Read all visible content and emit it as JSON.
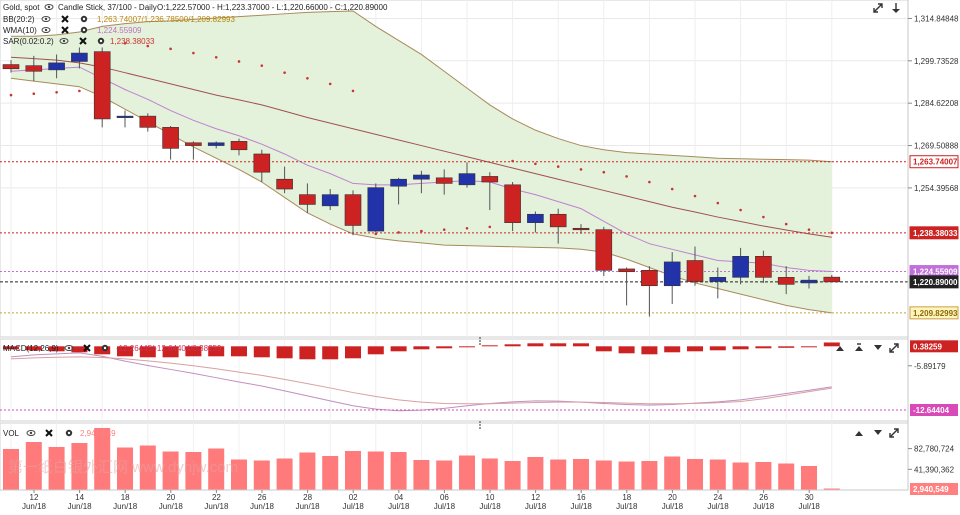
{
  "title": "Gold, spot",
  "chart_type": "Candle Stick, 37/100 - Daily",
  "ohlc": "O:1,222.57000 - H:1,223.37000 - L:1,220.66000 - C:1,220.89000",
  "indicators": [
    {
      "name": "BB(20:2)",
      "values": "1,263.74007/1,236.78500/1,209.82993",
      "color": "#b8860b"
    },
    {
      "name": "WMA(10)",
      "values": "1,224.55909",
      "color": "#c070c0"
    },
    {
      "name": "SAR(0.02:0.2)",
      "values": "1,238.38033",
      "color": "#cc3333"
    }
  ],
  "price_axis": {
    "ticks": [
      "1,314.84848",
      "1,299.73528",
      "1,284.62208",
      "1,269.50888",
      "1,254.39568"
    ],
    "tags": [
      {
        "label": "1,263.74007",
        "value": 1263.74007,
        "color": "#ffffff",
        "fg": "#cc2222"
      },
      {
        "label": "1,238.38033",
        "value": 1238.38033,
        "color": "#cc2222",
        "fg": "#ffffff"
      },
      {
        "label": "1,224.55909",
        "value": 1224.55909,
        "color": "#c070d8",
        "fg": "#ffffff"
      },
      {
        "label": "1,220.89000",
        "value": 1220.89,
        "color": "#222222",
        "fg": "#ffffff"
      },
      {
        "label": "1,209.82993",
        "value": 1209.82993,
        "color": "#fff3c0",
        "fg": "#8a6d00"
      }
    ]
  },
  "macd": {
    "label": "MACD(12,26,9)",
    "values": "-12.26445/-12.64404/0.38259",
    "ticks": [
      "-5.89179"
    ],
    "tags": [
      {
        "label": "0.38259",
        "color": "#cc2222",
        "fg": "#ffffff"
      },
      {
        "label": "-12.64404",
        "color": "#d84ab8",
        "fg": "#ffffff"
      }
    ]
  },
  "volume": {
    "label": "VOL",
    "value": "2,940,549",
    "ticks": [
      "82,780,724",
      "41,390,362"
    ],
    "tag": {
      "label": "2,940,549",
      "color": "#ff8080",
      "fg": "#ffffff"
    }
  },
  "x_axis": [
    {
      "day": "12",
      "month": "Jun/18"
    },
    {
      "day": "14",
      "month": "Jun/18"
    },
    {
      "day": "18",
      "month": "Jun/18"
    },
    {
      "day": "20",
      "month": "Jun/18"
    },
    {
      "day": "22",
      "month": "Jun/18"
    },
    {
      "day": "26",
      "month": "Jun/18"
    },
    {
      "day": "28",
      "month": "Jun/18"
    },
    {
      "day": "02",
      "month": "Jul/18"
    },
    {
      "day": "04",
      "month": "Jul/18"
    },
    {
      "day": "06",
      "month": "Jul/18"
    },
    {
      "day": "10",
      "month": "Jul/18"
    },
    {
      "day": "12",
      "month": "Jul/18"
    },
    {
      "day": "16",
      "month": "Jul/18"
    },
    {
      "day": "18",
      "month": "Jul/18"
    },
    {
      "day": "20",
      "month": "Jul/18"
    },
    {
      "day": "24",
      "month": "Jul/18"
    },
    {
      "day": "26",
      "month": "Jul/18"
    },
    {
      "day": "30",
      "month": "Jul/18"
    }
  ],
  "watermark": "第一纸白银外汇网  www.dyhjw.com",
  "colors": {
    "up": "#2233aa",
    "down": "#cc2222",
    "band_fill": "#e4f2dc",
    "band_line": "#a88a5a",
    "mid_line": "#a05050",
    "wma": "#c080d0",
    "sar": "#cc3333",
    "vol": "#ff7b7b"
  },
  "chart_data": [
    {
      "type": "candlestick",
      "title": "Gold, spot",
      "ylim": [
        1203,
        1320
      ],
      "candles": [
        {
          "o": 1298.4,
          "h": 1300.0,
          "l": 1295.5,
          "c": 1296.9
        },
        {
          "o": 1298.0,
          "h": 1301.5,
          "l": 1292.5,
          "c": 1296.0
        },
        {
          "o": 1296.5,
          "h": 1302.0,
          "l": 1293.5,
          "c": 1299.0
        },
        {
          "o": 1299.5,
          "h": 1304.5,
          "l": 1297.0,
          "c": 1302.5
        },
        {
          "o": 1303.0,
          "h": 1304.5,
          "l": 1276.0,
          "c": 1279.0
        },
        {
          "o": 1279.5,
          "h": 1282.0,
          "l": 1276.0,
          "c": 1280.0
        },
        {
          "o": 1280.0,
          "h": 1281.0,
          "l": 1274.5,
          "c": 1276.0
        },
        {
          "o": 1276.0,
          "h": 1276.5,
          "l": 1264.5,
          "c": 1268.5
        },
        {
          "o": 1270.5,
          "h": 1271.0,
          "l": 1264.5,
          "c": 1269.5
        },
        {
          "o": 1269.5,
          "h": 1271.0,
          "l": 1268.5,
          "c": 1270.5
        },
        {
          "o": 1271.0,
          "h": 1272.0,
          "l": 1266.0,
          "c": 1268.0
        },
        {
          "o": 1266.5,
          "h": 1268.0,
          "l": 1256.5,
          "c": 1260.0
        },
        {
          "o": 1257.5,
          "h": 1262.0,
          "l": 1252.5,
          "c": 1254.0
        },
        {
          "o": 1252.0,
          "h": 1256.0,
          "l": 1245.5,
          "c": 1248.5
        },
        {
          "o": 1248.0,
          "h": 1254.0,
          "l": 1246.5,
          "c": 1252.0
        },
        {
          "o": 1252.0,
          "h": 1253.5,
          "l": 1237.5,
          "c": 1241.0
        },
        {
          "o": 1239.0,
          "h": 1256.0,
          "l": 1238.5,
          "c": 1254.5
        },
        {
          "o": 1255.0,
          "h": 1258.0,
          "l": 1248.5,
          "c": 1257.5
        },
        {
          "o": 1257.5,
          "h": 1260.5,
          "l": 1252.5,
          "c": 1259.0
        },
        {
          "o": 1258.0,
          "h": 1261.0,
          "l": 1252.0,
          "c": 1256.0
        },
        {
          "o": 1255.5,
          "h": 1263.5,
          "l": 1254.5,
          "c": 1259.5
        },
        {
          "o": 1258.5,
          "h": 1260.0,
          "l": 1246.5,
          "c": 1256.5
        },
        {
          "o": 1255.5,
          "h": 1256.5,
          "l": 1239.0,
          "c": 1242.0
        },
        {
          "o": 1242.0,
          "h": 1246.0,
          "l": 1238.5,
          "c": 1245.0
        },
        {
          "o": 1245.0,
          "h": 1247.0,
          "l": 1234.5,
          "c": 1240.5
        },
        {
          "o": 1240.0,
          "h": 1241.5,
          "l": 1238.0,
          "c": 1239.5
        },
        {
          "o": 1239.5,
          "h": 1240.5,
          "l": 1223.0,
          "c": 1225.0
        },
        {
          "o": 1225.5,
          "h": 1226.0,
          "l": 1212.5,
          "c": 1224.5
        },
        {
          "o": 1225.0,
          "h": 1226.5,
          "l": 1208.5,
          "c": 1219.5
        },
        {
          "o": 1219.5,
          "h": 1231.5,
          "l": 1213.0,
          "c": 1228.0
        },
        {
          "o": 1228.5,
          "h": 1233.5,
          "l": 1219.5,
          "c": 1221.0
        },
        {
          "o": 1221.0,
          "h": 1226.0,
          "l": 1215.0,
          "c": 1222.5
        },
        {
          "o": 1222.5,
          "h": 1233.0,
          "l": 1220.0,
          "c": 1230.0
        },
        {
          "o": 1230.0,
          "h": 1232.0,
          "l": 1220.5,
          "c": 1222.5
        },
        {
          "o": 1222.5,
          "h": 1226.5,
          "l": 1216.5,
          "c": 1220.0
        },
        {
          "o": 1220.5,
          "h": 1223.0,
          "l": 1218.5,
          "c": 1221.5
        },
        {
          "o": 1222.57,
          "h": 1223.37,
          "l": 1220.66,
          "c": 1220.89
        }
      ],
      "bb_upper": [
        1308.5,
        1308.5,
        1309.0,
        1310.0,
        1312.0,
        1313.0,
        1313.7,
        1314.0,
        1314.5,
        1315.0,
        1315.5,
        1316.0,
        1316.5,
        1317.0,
        1317.3,
        1317.5,
        1312.0,
        1307.0,
        1302.0,
        1296.0,
        1290.0,
        1284.0,
        1279.0,
        1275.0,
        1272.0,
        1269.5,
        1268.0,
        1267.0,
        1266.5,
        1266.0,
        1265.5,
        1265.0,
        1264.8,
        1264.6,
        1264.5,
        1264.3,
        1263.74
      ],
      "bb_mid": [
        1301.0,
        1300.5,
        1300.0,
        1299.0,
        1297.5,
        1295.5,
        1293.5,
        1291.5,
        1289.5,
        1287.5,
        1285.8,
        1284.0,
        1281.8,
        1279.5,
        1277.5,
        1275.5,
        1273.5,
        1271.5,
        1269.5,
        1267.5,
        1265.5,
        1263.5,
        1261.5,
        1259.5,
        1257.5,
        1255.5,
        1253.5,
        1251.5,
        1249.5,
        1247.5,
        1245.8,
        1244.0,
        1242.4,
        1240.8,
        1239.4,
        1238.0,
        1236.785
      ],
      "bb_lower": [
        1293.5,
        1292.5,
        1291.5,
        1290.5,
        1287.0,
        1282.5,
        1278.0,
        1273.5,
        1269.0,
        1265.0,
        1261.0,
        1256.5,
        1251.0,
        1245.5,
        1241.5,
        1238.0,
        1236.5,
        1235.5,
        1234.8,
        1234.0,
        1233.8,
        1233.6,
        1233.4,
        1233.2,
        1233.0,
        1232.5,
        1231.5,
        1229.0,
        1226.0,
        1223.0,
        1220.5,
        1218.5,
        1216.5,
        1214.5,
        1212.5,
        1211.0,
        1209.83
      ],
      "wma": [
        1296.0,
        1296.5,
        1297.0,
        1297.5,
        1293.5,
        1289.5,
        1286.0,
        1282.0,
        1278.5,
        1275.5,
        1273.0,
        1270.0,
        1266.5,
        1262.5,
        1259.5,
        1256.0,
        1255.5,
        1255.5,
        1256.0,
        1256.5,
        1257.0,
        1256.5,
        1254.0,
        1252.0,
        1249.5,
        1247.0,
        1242.5,
        1238.0,
        1234.5,
        1232.5,
        1230.5,
        1228.5,
        1228.0,
        1227.5,
        1226.0,
        1225.0,
        1224.56
      ],
      "sar": [
        1287.5,
        1288.0,
        1288.5,
        1289.0,
        1307.0,
        1306.0,
        1305.0,
        1304.0,
        1302.5,
        1301.0,
        1299.5,
        1298.0,
        1295.5,
        1293.5,
        1291.5,
        1289.0,
        1238.0,
        1238.5,
        1239.0,
        1239.5,
        1240.0,
        1240.5,
        1264.0,
        1263.0,
        1262.0,
        1261.0,
        1260.0,
        1258.5,
        1256.5,
        1254.0,
        1251.5,
        1249.0,
        1246.5,
        1244.0,
        1241.5,
        1239.5,
        1238.38
      ]
    },
    {
      "type": "bar",
      "title": "MACD(12,26,9)",
      "ylim": [
        -22,
        1
      ],
      "histogram": [
        -0.3,
        -0.4,
        -0.5,
        -0.6,
        -0.8,
        -1.0,
        -1.1,
        -1.1,
        -1.0,
        -1.0,
        -1.0,
        -1.1,
        -1.2,
        -1.3,
        -1.3,
        -1.2,
        -0.8,
        -0.5,
        -0.3,
        -0.2,
        0.0,
        0.1,
        0.2,
        0.3,
        0.3,
        0.3,
        -0.5,
        -0.7,
        -0.8,
        -0.6,
        -0.5,
        -0.4,
        -0.3,
        -0.2,
        -0.15,
        -0.1,
        0.38259
      ],
      "macd": [
        -3.2,
        -2.6,
        -2.3,
        -2.0,
        -3.0,
        -4.5,
        -5.8,
        -7.0,
        -8.2,
        -9.5,
        -10.8,
        -12.0,
        -13.5,
        -15.0,
        -16.5,
        -18.0,
        -19.0,
        -19.5,
        -19.3,
        -18.8,
        -18.0,
        -17.3,
        -16.8,
        -16.5,
        -16.6,
        -16.9,
        -17.3,
        -17.6,
        -17.8,
        -17.6,
        -17.2,
        -16.8,
        -16.2,
        -15.3,
        -14.3,
        -13.3,
        -12.26445
      ],
      "signal": [
        -3.8,
        -3.5,
        -3.3,
        -3.2,
        -3.4,
        -3.8,
        -4.4,
        -5.1,
        -5.9,
        -6.8,
        -7.8,
        -8.8,
        -10.0,
        -11.3,
        -12.6,
        -14.0,
        -15.2,
        -16.2,
        -16.9,
        -17.3,
        -17.4,
        -17.4,
        -17.2,
        -17.0,
        -16.9,
        -16.9,
        -17.0,
        -17.2,
        -17.4,
        -17.4,
        -17.3,
        -17.1,
        -16.7,
        -15.9,
        -14.8,
        -13.7,
        -12.64404
      ]
    },
    {
      "type": "bar",
      "title": "VOL",
      "ylim": [
        0,
        124000000
      ],
      "values": [
        82000000,
        96000000,
        86000000,
        94000000,
        124000000,
        85000000,
        89000000,
        77000000,
        76000000,
        83000000,
        61000000,
        59000000,
        63000000,
        75000000,
        68000000,
        78000000,
        77000000,
        76000000,
        60000000,
        59000000,
        69000000,
        63000000,
        58000000,
        66000000,
        61000000,
        62000000,
        59000000,
        57000000,
        58000000,
        67000000,
        62000000,
        61000000,
        55000000,
        56000000,
        53000000,
        48000000,
        2940549
      ]
    }
  ]
}
